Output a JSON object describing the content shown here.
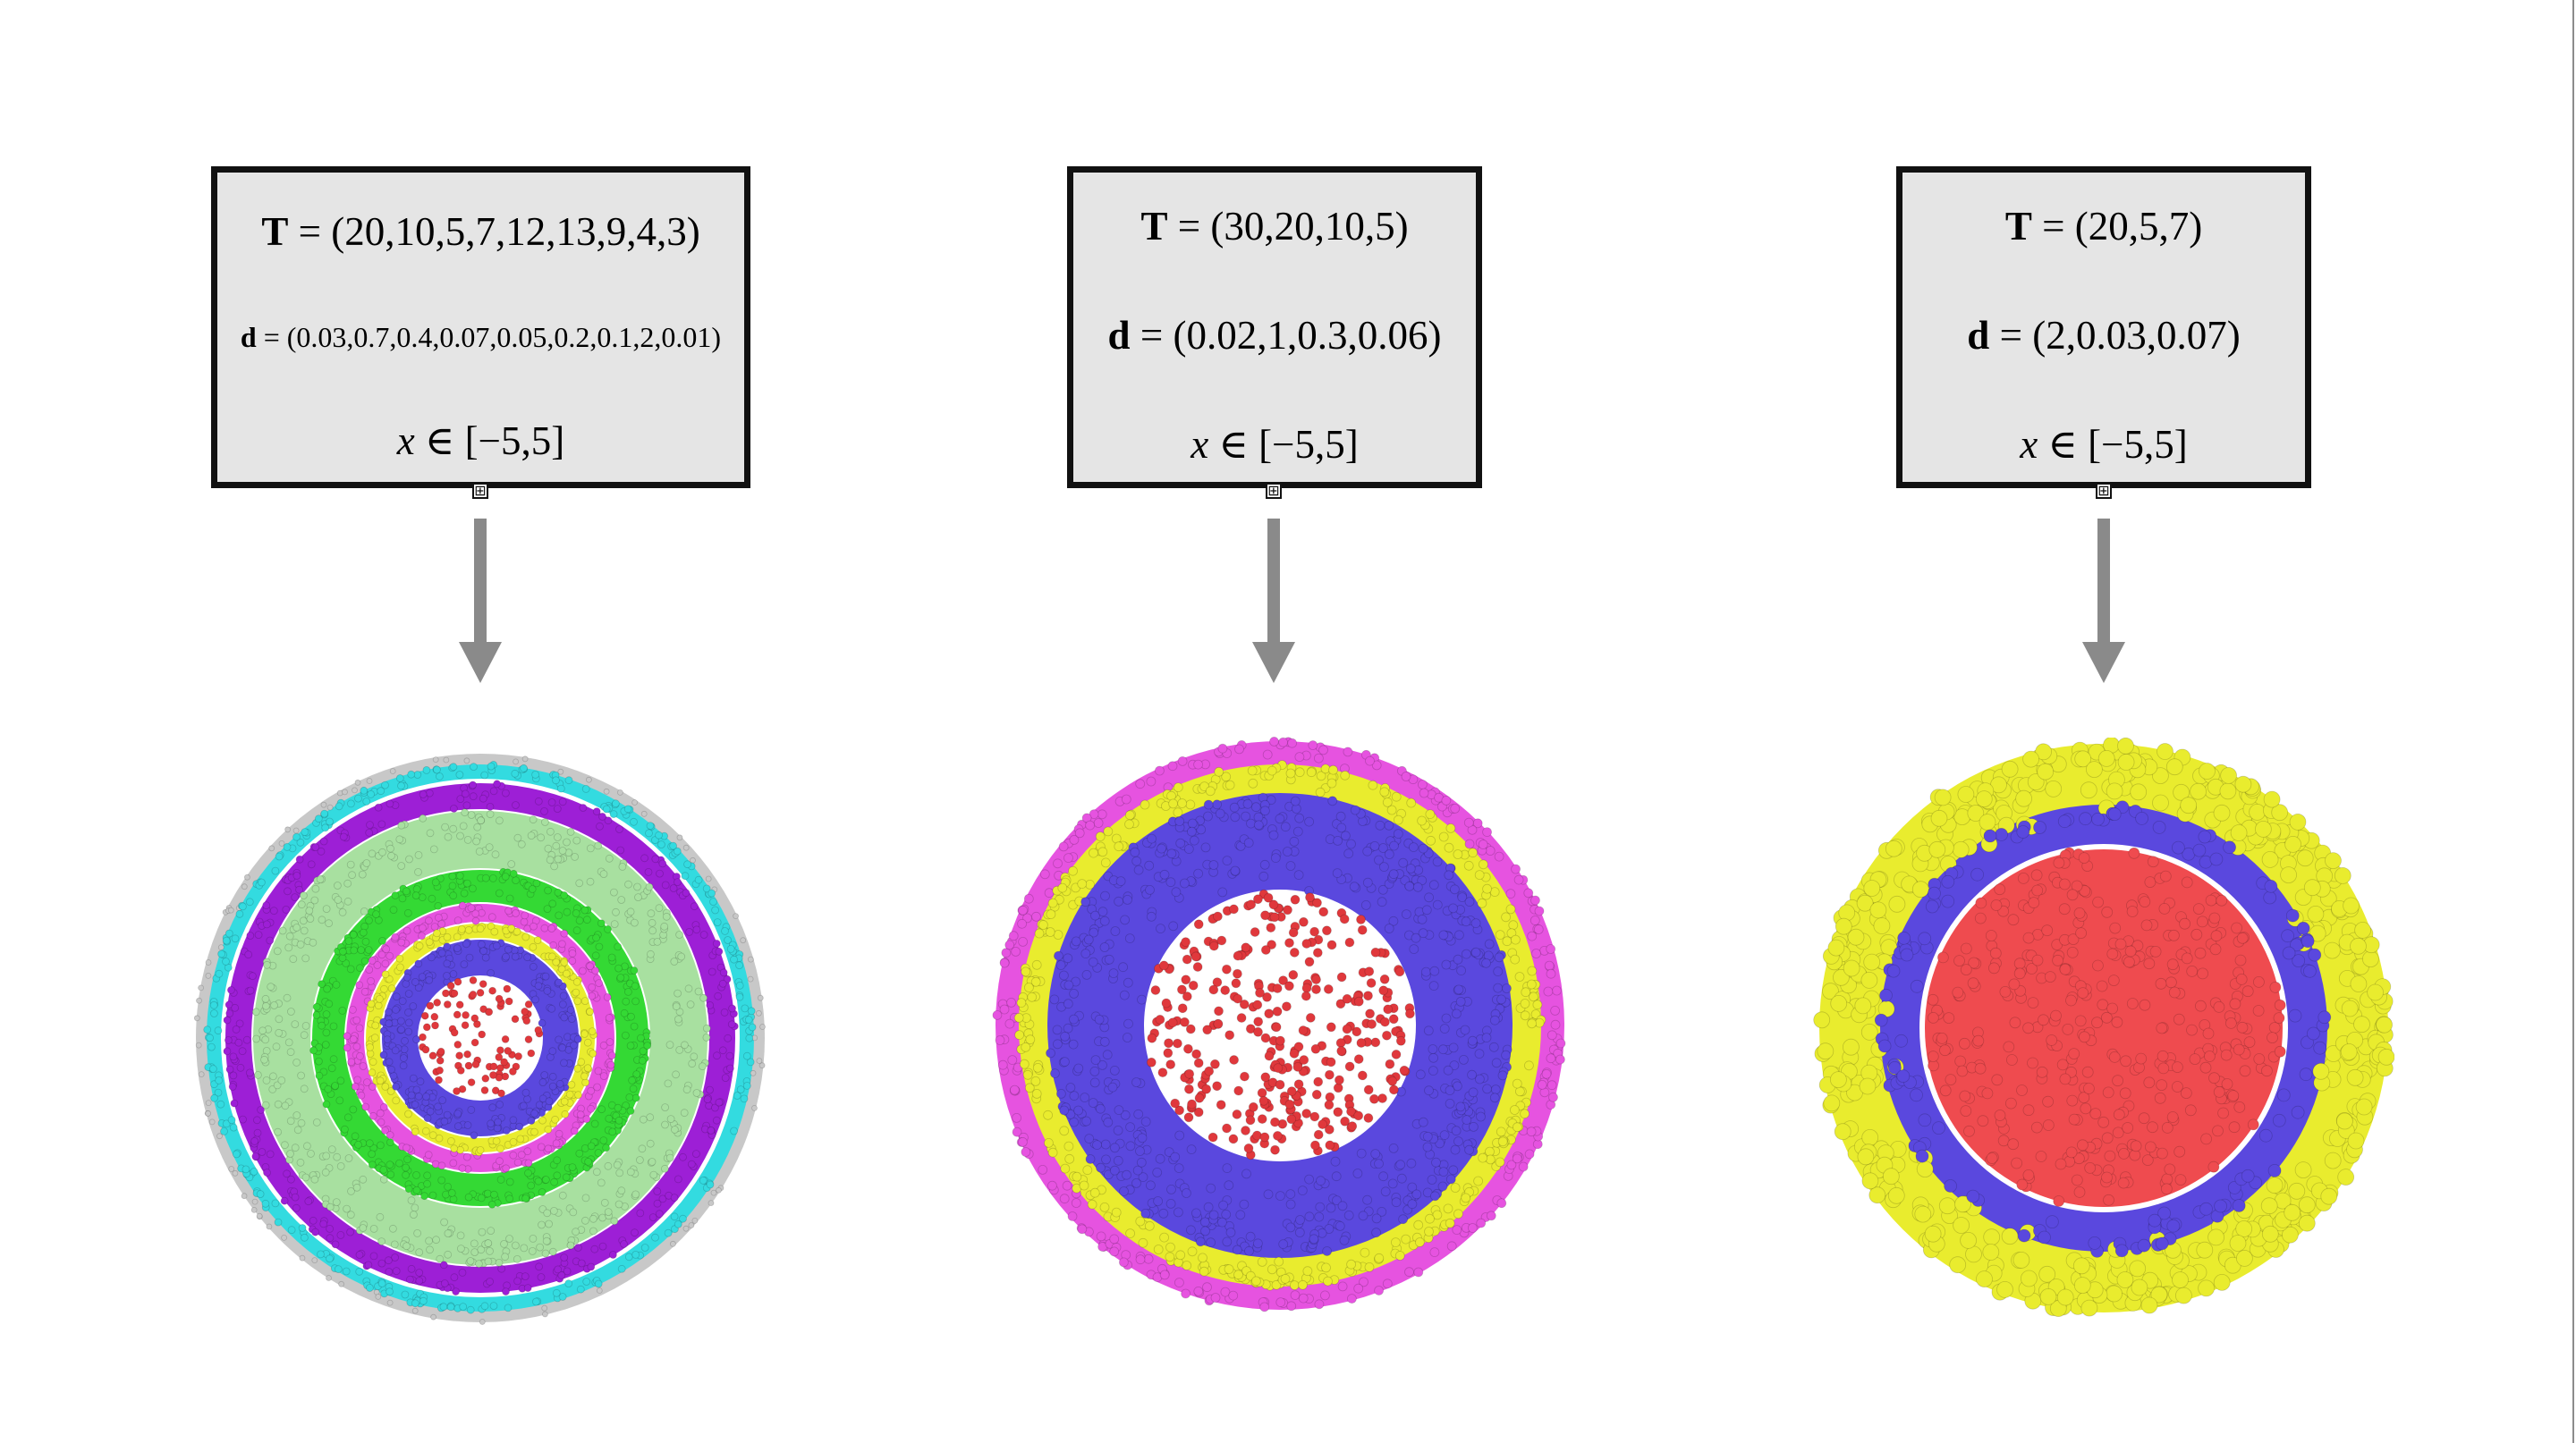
{
  "panels": [
    {
      "T_symbol": "T",
      "T_value": "= (20,10,5,7,12,13,9,4,3)",
      "d_symbol": "d",
      "d_value": "= (0.03,0.7,0.4,0.07,0.05,0.2,0.1,2,0.01)",
      "x_symbol": "x",
      "x_value": "∈ [−5,5]",
      "expand_glyph": "⊞",
      "layers_outer_to_inner": [
        "#c8c8c8",
        "#33dbe0",
        "#9d1fd6",
        "#a8e0a0",
        "#34d934",
        "#e653e0",
        "#e9ec2e",
        "#5a48de",
        "#e0383c"
      ]
    },
    {
      "T_symbol": "T",
      "T_value": "= (30,20,10,5)",
      "d_symbol": "d",
      "d_value": "= (0.02,1,0.3,0.06)",
      "x_symbol": "x",
      "x_value": "∈ [−5,5]",
      "expand_glyph": "⊞",
      "layers_outer_to_inner": [
        "#e653e0",
        "#e9ec2e",
        "#5a48de",
        "#e0383c"
      ]
    },
    {
      "T_symbol": "T",
      "T_value": "= (20,5,7)",
      "d_symbol": "d",
      "d_value": "= (2,0.03,0.07)",
      "x_symbol": "x",
      "x_value": "∈ [−5,5]",
      "expand_glyph": "⊞",
      "layers_outer_to_inner": [
        "#e9ec2e",
        "#5a48de",
        "#ef4b4f"
      ]
    }
  ]
}
